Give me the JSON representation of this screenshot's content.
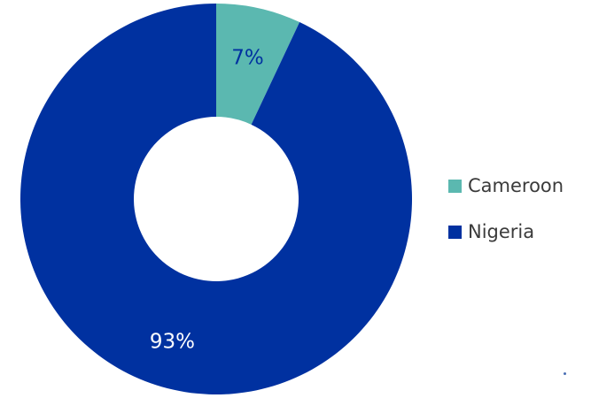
{
  "chart_data": {
    "type": "pie",
    "donut": true,
    "title": "",
    "categories": [
      "Cameroon",
      "Nigeria"
    ],
    "values": [
      7,
      93
    ],
    "labels": [
      "7%",
      "93%"
    ],
    "colors": [
      "#5bb8b0",
      "#0031a0"
    ],
    "label_colors": [
      "#0031a0",
      "#ffffff"
    ],
    "legend_position": "right"
  },
  "legend": {
    "items": [
      {
        "label": "Cameroon",
        "color": "#5bb8b0"
      },
      {
        "label": "Nigeria",
        "color": "#0031a0"
      }
    ]
  }
}
